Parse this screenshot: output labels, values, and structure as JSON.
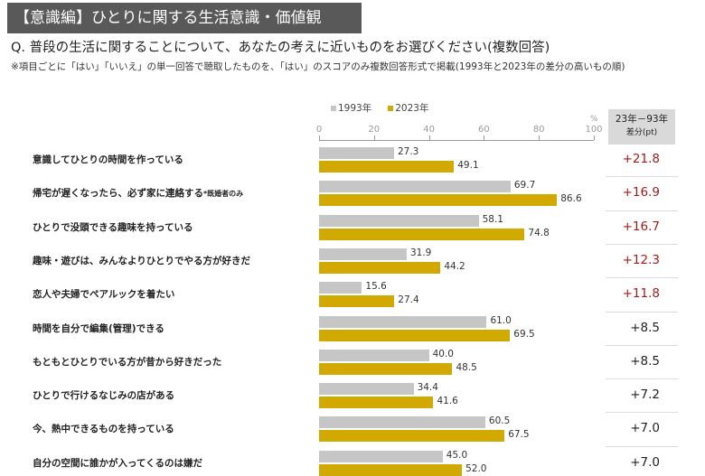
{
  "header": {
    "title": "【意識編】ひとりに関する生活意識・価値観",
    "question": "Q. 普段の生活に関することについて、あなたの考えに近いものをお選びください(複数回答)",
    "note": "※項目ごとに「はい」「いいえ」の単一回答で聴取したものを、「はい」のスコアのみ複数回答形式で掲載(1993年と2023年の差分の高いもの順)"
  },
  "chart_data": {
    "type": "bar",
    "orientation": "horizontal",
    "unit": "%",
    "xlim": [
      0,
      100
    ],
    "ticks": [
      "0",
      "20",
      "40",
      "60",
      "80",
      "100"
    ],
    "diff_header": [
      "23年－93年",
      "差分(pt)"
    ],
    "colors": {
      "1993": "#c6c6c6",
      "2023": "#d1a900",
      "diff_positive_high": "#a01c1c",
      "diff_normal": "#222222"
    },
    "categories": [
      "意識してひとりの時間を作っている",
      "帰宅が遅くなったら、必ず家に連絡する",
      "ひとりで没頭できる趣味を持っている",
      "趣味・遊びは、みんなよりひとりでやる方が好きだ",
      "恋人や夫婦でペアルックを着たい",
      "時間を自分で編集(管理)できる",
      "もともとひとりでいる方が昔から好きだった",
      "ひとりで行けるなじみの店がある",
      "今、熱中できるものを持っている",
      "自分の空間に誰かが入ってくるのは嫌だ"
    ],
    "category_notes": [
      "",
      "*既婚者のみ",
      "",
      "",
      "",
      "",
      "",
      "",
      "",
      ""
    ],
    "series": [
      {
        "name": "1993年",
        "values": [
          27.3,
          69.7,
          58.1,
          31.9,
          15.6,
          61.0,
          40.0,
          34.4,
          60.5,
          45.0
        ]
      },
      {
        "name": "2023年",
        "values": [
          49.1,
          86.6,
          74.8,
          44.2,
          27.4,
          69.5,
          48.5,
          41.6,
          67.5,
          52.0
        ]
      }
    ],
    "diff": [
      "+21.8",
      "+16.9",
      "+16.7",
      "+12.3",
      "+11.8",
      "+8.5",
      "+8.5",
      "+7.2",
      "+7.0",
      "+7.0"
    ],
    "diff_highlight": [
      true,
      true,
      true,
      true,
      true,
      false,
      false,
      false,
      false,
      false
    ]
  }
}
